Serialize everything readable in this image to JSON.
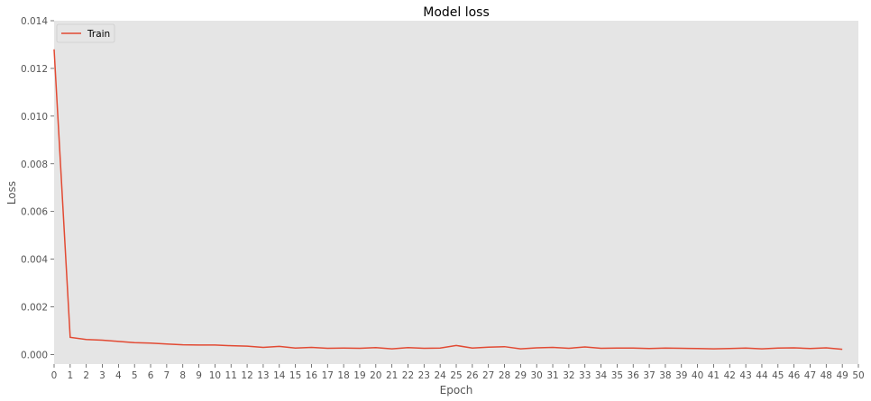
{
  "chart_data": {
    "type": "line",
    "title": "Model loss",
    "xlabel": "Epoch",
    "ylabel": "Loss",
    "xlim": [
      0,
      50
    ],
    "ylim": [
      -0.0004,
      0.014
    ],
    "x_ticks": [
      0,
      1,
      2,
      3,
      4,
      5,
      6,
      7,
      8,
      9,
      10,
      11,
      12,
      13,
      14,
      15,
      16,
      17,
      18,
      19,
      20,
      21,
      22,
      23,
      24,
      25,
      26,
      27,
      28,
      29,
      30,
      31,
      32,
      33,
      34,
      35,
      36,
      37,
      38,
      39,
      40,
      41,
      42,
      43,
      44,
      45,
      46,
      47,
      48,
      49,
      50
    ],
    "y_ticks": [
      0.0,
      0.002,
      0.004,
      0.006,
      0.008,
      0.01,
      0.012,
      0.014
    ],
    "y_tick_labels": [
      "0.000",
      "0.002",
      "0.004",
      "0.006",
      "0.008",
      "0.010",
      "0.012",
      "0.014"
    ],
    "grid": false,
    "legend_position": "upper-left",
    "series": [
      {
        "name": "Train",
        "color": "#e24a33",
        "x": [
          0,
          1,
          2,
          3,
          4,
          5,
          6,
          7,
          8,
          9,
          10,
          11,
          12,
          13,
          14,
          15,
          16,
          17,
          18,
          19,
          20,
          21,
          22,
          23,
          24,
          25,
          26,
          27,
          28,
          29,
          30,
          31,
          32,
          33,
          34,
          35,
          36,
          37,
          38,
          39,
          40,
          41,
          42,
          43,
          44,
          45,
          46,
          47,
          48,
          49
        ],
        "y": [
          0.0128,
          0.00072,
          0.00063,
          0.0006,
          0.00055,
          0.0005,
          0.00048,
          0.00044,
          0.00041,
          0.0004,
          0.0004,
          0.00037,
          0.00035,
          0.0003,
          0.00034,
          0.00027,
          0.0003,
          0.00026,
          0.00027,
          0.00026,
          0.00029,
          0.00024,
          0.00029,
          0.00026,
          0.00027,
          0.00038,
          0.00027,
          0.00031,
          0.00033,
          0.00024,
          0.00028,
          0.0003,
          0.00026,
          0.00032,
          0.00026,
          0.00027,
          0.00027,
          0.00025,
          0.00027,
          0.00026,
          0.00025,
          0.00024,
          0.00025,
          0.00027,
          0.00024,
          0.00027,
          0.00028,
          0.00025,
          0.00028,
          0.00022
        ]
      }
    ]
  }
}
